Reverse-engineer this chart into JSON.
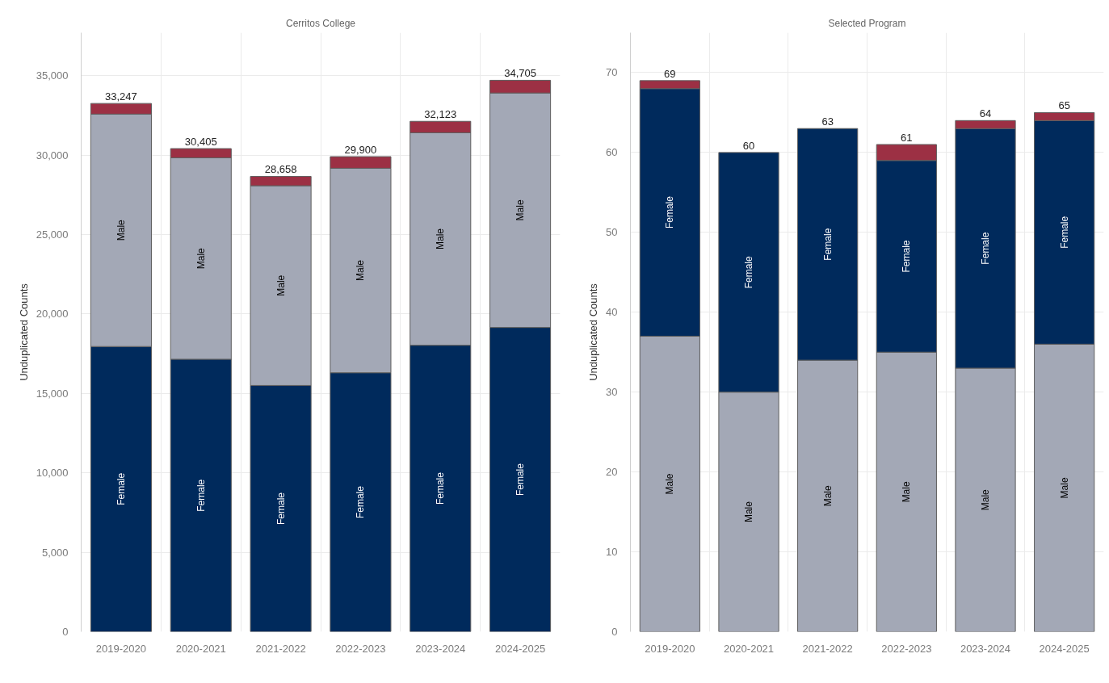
{
  "chart_data": [
    {
      "type": "bar",
      "stacked": true,
      "title": "Cerritos College",
      "ylabel": "Unduplicated Counts",
      "categories": [
        "2019-2020",
        "2020-2021",
        "2021-2022",
        "2022-2023",
        "2023-2024",
        "2024-2025"
      ],
      "series": [
        {
          "name": "Female",
          "color": "#002a5c",
          "values": [
            17950,
            17150,
            15500,
            16300,
            18030,
            19150
          ]
        },
        {
          "name": "Male",
          "color": "#a3a8b6",
          "values": [
            14627,
            12675,
            12568,
            12870,
            13373,
            14755
          ]
        },
        {
          "color": "#9c3044",
          "values": [
            670,
            580,
            590,
            730,
            720,
            800
          ]
        }
      ],
      "totals": [
        "33,247",
        "30,405",
        "28,658",
        "29,900",
        "32,123",
        "34,705"
      ],
      "ylim": [
        0,
        37700
      ],
      "yticks": [
        0,
        {
          "value": 5000,
          "label": "5,000"
        },
        {
          "value": 10000,
          "label": "10,000"
        },
        {
          "value": 15000,
          "label": "15,000"
        },
        {
          "value": 20000,
          "label": "20,000"
        },
        {
          "value": 25000,
          "label": "25,000"
        },
        {
          "value": 30000,
          "label": "30,000"
        },
        {
          "value": 35000,
          "label": "35,000"
        }
      ],
      "grid": true
    },
    {
      "type": "bar",
      "stacked": true,
      "title": "Selected Program",
      "ylabel": "Unduplicated Counts",
      "categories": [
        "2019-2020",
        "2020-2021",
        "2021-2022",
        "2022-2023",
        "2023-2024",
        "2024-2025"
      ],
      "series": [
        {
          "name": "Male",
          "color": "#a3a8b6",
          "values": [
            37,
            30,
            34,
            35,
            33,
            36
          ]
        },
        {
          "name": "Female",
          "color": "#002a5c",
          "values": [
            31,
            30,
            29,
            24,
            30,
            28
          ]
        },
        {
          "color": "#9c3044",
          "values": [
            1,
            null,
            null,
            2,
            1,
            1
          ]
        }
      ],
      "totals": [
        "69",
        "60",
        "63",
        "61",
        "64",
        "65"
      ],
      "ylim": [
        0,
        75
      ],
      "yticks": [
        0,
        10,
        20,
        30,
        40,
        50,
        60,
        70
      ],
      "grid": true
    }
  ]
}
